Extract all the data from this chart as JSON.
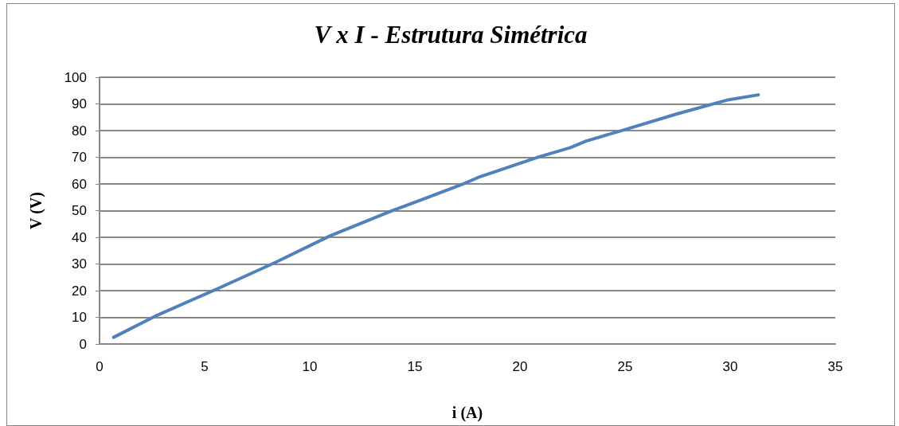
{
  "chart_data": {
    "type": "line",
    "title": "V x I - Estrutura Simétrica",
    "xlabel": "i (A)",
    "ylabel": "V (V)",
    "x": [
      0.67,
      2.75,
      5.58,
      8.29,
      10.93,
      13.96,
      15.47,
      17.36,
      18.0,
      20.89,
      22.4,
      23.15,
      24.92,
      27.44,
      29.83,
      31.34
    ],
    "series": [
      {
        "color": "#4f81bd",
        "values": [
          2.5,
          10.8,
          20.6,
          30.3,
          40.4,
          50.1,
          54.5,
          60.2,
          62.4,
          70.1,
          73.6,
          76.1,
          80.2,
          86.2,
          91.4,
          93.4
        ]
      }
    ],
    "xlim": [
      0,
      35
    ],
    "xticks": [
      0,
      5,
      10,
      15,
      20,
      25,
      30,
      35
    ],
    "ylim": [
      0,
      100
    ],
    "yticks": [
      0,
      10,
      20,
      30,
      40,
      50,
      60,
      70,
      80,
      90,
      100
    ],
    "grid": "y",
    "marker": "none",
    "line_style": "solid"
  }
}
